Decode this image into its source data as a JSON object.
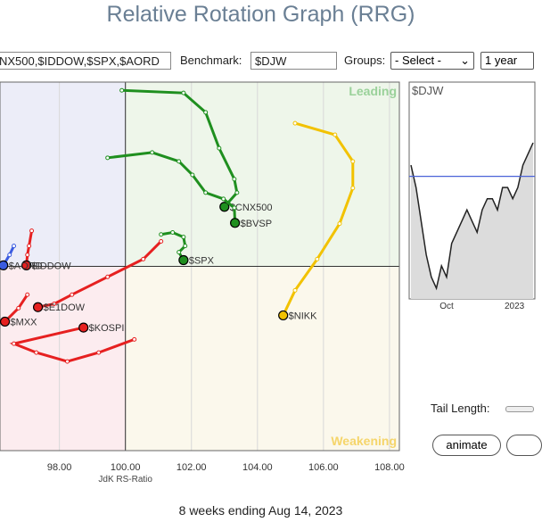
{
  "header": {
    "title": "Relative Rotation Graph (RRG)"
  },
  "controls": {
    "symbols": "NX500,$IDDOW,$SPX,$AORD",
    "benchmark_label": "Benchmark:",
    "benchmark": "$DJW",
    "groups_label": "Groups:",
    "groups": "- Select -",
    "period": "1 year",
    "tail_length_label": "Tail Length:",
    "animate": "animate"
  },
  "footer": "8 weeks ending Aug 14, 2023",
  "chart_data": {
    "type": "rrg",
    "x_label": "JdK RS-Ratio",
    "center": [
      100,
      100
    ],
    "xlim": [
      96.2,
      108.3
    ],
    "ylim": [
      94.4,
      105.6
    ],
    "xticks": [
      {
        "value": 98,
        "label": "98.00"
      },
      {
        "value": 100,
        "label": "100.00"
      },
      {
        "value": 102,
        "label": "102.00"
      },
      {
        "value": 104,
        "label": "104.00"
      },
      {
        "value": 106,
        "label": "106.00"
      },
      {
        "value": 108,
        "label": "108.00"
      }
    ],
    "quadrants": {
      "leading": "Leading",
      "weakening": "Weakening"
    },
    "series": [
      {
        "name": "$CNX500",
        "color": "#1f8f1f",
        "x": [
          99.89,
          101.76,
          102.43,
          102.84,
          103.3,
          103.38,
          103.0
        ],
        "y": [
          105.35,
          105.27,
          104.68,
          103.59,
          102.65,
          102.24,
          101.81
        ]
      },
      {
        "name": "$BVSP",
        "color": "#1f8f1f",
        "x": [
          99.46,
          100.81,
          101.62,
          102.03,
          102.43,
          102.97,
          103.3,
          103.32
        ],
        "y": [
          103.3,
          103.46,
          103.19,
          102.78,
          102.24,
          102.05,
          101.78,
          101.32
        ]
      },
      {
        "name": "$SPX",
        "color": "#1f8f1f",
        "x": [
          101.08,
          101.43,
          101.76,
          101.81,
          101.62,
          101.76
        ],
        "y": [
          100.97,
          101.03,
          100.89,
          100.62,
          100.43,
          100.19
        ]
      },
      {
        "name": "$NIKK",
        "color": "#f2c200",
        "x": [
          105.14,
          106.35,
          106.89,
          106.89,
          106.49,
          105.81,
          105.14,
          104.78
        ],
        "y": [
          104.35,
          104.0,
          103.19,
          102.38,
          101.3,
          100.22,
          99.27,
          98.51
        ]
      },
      {
        "name": "$IDDOW",
        "color": "#e62020",
        "x": [
          97.16,
          97.08,
          97.03,
          97.0
        ],
        "y": [
          101.08,
          100.62,
          100.35,
          100.03
        ]
      },
      {
        "name": "$AORD",
        "color": "#3a5be0",
        "x": [
          96.62,
          96.49,
          96.3
        ],
        "y": [
          100.62,
          100.35,
          100.03
        ]
      },
      {
        "name": "$E1DOW",
        "color": "#e62020",
        "x": [
          101.08,
          100.54,
          99.46,
          98.38,
          97.84,
          97.35
        ],
        "y": [
          100.76,
          100.22,
          99.68,
          99.14,
          98.86,
          98.76
        ]
      },
      {
        "name": "$KOSPI",
        "color": "#e62020",
        "x": [
          100.27,
          99.19,
          98.24,
          97.3,
          96.62,
          98.73
        ],
        "y": [
          97.78,
          97.38,
          97.11,
          97.38,
          97.65,
          98.14
        ]
      },
      {
        "name": "$MXX",
        "color": "#e62020",
        "x": [
          97.03,
          96.76,
          96.35
        ],
        "y": [
          99.14,
          98.73,
          98.32
        ]
      }
    ]
  },
  "mini_chart": {
    "title": "$DJW",
    "x_labels": [
      "Oct",
      "2023"
    ],
    "values": [
      12,
      10,
      7,
      4,
      2,
      1,
      3,
      2,
      5,
      6,
      7,
      8,
      7,
      6,
      8,
      9,
      9,
      8,
      10,
      10,
      9,
      10,
      12,
      13,
      14
    ],
    "reference": 11
  }
}
